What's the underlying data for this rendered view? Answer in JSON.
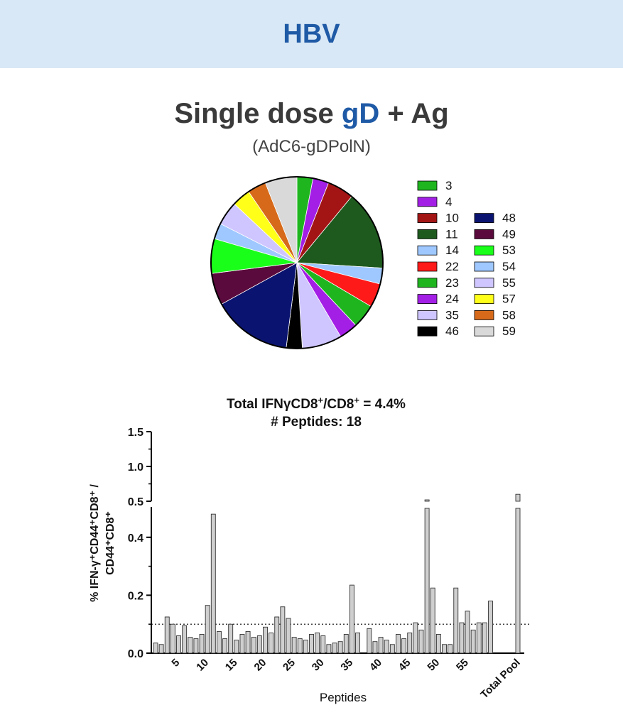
{
  "header": {
    "title": "HBV"
  },
  "figure": {
    "title_part1": "Single dose ",
    "title_accent": "gD",
    "title_part2": " + Ag",
    "subtitle": "(AdC6-gDPolN)",
    "accent_color": "#1f5aa6"
  },
  "chart_data": [
    {
      "type": "pie",
      "slices": [
        {
          "label": "3",
          "value": 3.0,
          "color": "#1fb51f"
        },
        {
          "label": "4",
          "value": 3.0,
          "color": "#a31fe6"
        },
        {
          "label": "10",
          "value": 5.0,
          "color": "#a31515"
        },
        {
          "label": "11",
          "value": 15.0,
          "color": "#1e5a1e"
        },
        {
          "label": "14",
          "value": 3.0,
          "color": "#9ec8ff"
        },
        {
          "label": "22",
          "value": 4.5,
          "color": "#ff1a1a"
        },
        {
          "label": "23",
          "value": 4.5,
          "color": "#1fb51f"
        },
        {
          "label": "24",
          "value": 3.5,
          "color": "#a31fe6"
        },
        {
          "label": "35",
          "value": 7.5,
          "color": "#cfc5ff"
        },
        {
          "label": "46",
          "value": 3.0,
          "color": "#000000"
        },
        {
          "label": "48",
          "value": 15.0,
          "color": "#0a1470"
        },
        {
          "label": "49",
          "value": 6.0,
          "color": "#5a0a3c"
        },
        {
          "label": "53",
          "value": 6.5,
          "color": "#1aff1a"
        },
        {
          "label": "54",
          "value": 3.0,
          "color": "#9ec8ff"
        },
        {
          "label": "55",
          "value": 4.5,
          "color": "#cfc5ff"
        },
        {
          "label": "57",
          "value": 3.5,
          "color": "#ffff1a"
        },
        {
          "label": "58",
          "value": 3.5,
          "color": "#d66a1a"
        },
        {
          "label": "59",
          "value": 6.0,
          "color": "#d9d9d9"
        }
      ]
    },
    {
      "type": "bar",
      "title_line1": "Total IFNγCD8",
      "title_sup1": "+",
      "title_mid": "/CD8",
      "title_sup2": "+",
      "title_end": " = 4.4%",
      "title_line2": "# Peptides: 18",
      "xlabel": "Peptides",
      "ylabel_line1": "% IFN-γ⁺CD44⁺CD8⁺ /",
      "ylabel_line2": "CD44⁺CD8⁺",
      "y_axis_break": true,
      "ylim_lower": [
        0.0,
        0.5
      ],
      "ylim_upper": [
        0.5,
        1.5
      ],
      "y_ticks_lower": [
        "0.0",
        "0.2",
        "0.4"
      ],
      "y_ticks_upper": [
        "0.5",
        "1.0",
        "1.5"
      ],
      "x_ticks": [
        "5",
        "10",
        "15",
        "20",
        "25",
        "30",
        "35",
        "40",
        "45",
        "50",
        "55",
        "Total Pool"
      ],
      "threshold": 0.1,
      "values": [
        0.035,
        0.03,
        0.125,
        0.1,
        0.06,
        0.095,
        0.055,
        0.05,
        0.065,
        0.165,
        0.48,
        0.075,
        0.05,
        0.1,
        0.045,
        0.065,
        0.075,
        0.055,
        0.06,
        0.09,
        0.07,
        0.125,
        0.16,
        0.12,
        0.055,
        0.05,
        0.045,
        0.065,
        0.07,
        0.06,
        0.03,
        0.035,
        0.04,
        0.065,
        0.235,
        0.07,
        0.0,
        0.085,
        0.04,
        0.055,
        0.045,
        0.03,
        0.065,
        0.05,
        0.07,
        0.105,
        0.08,
        0.52,
        0.225,
        0.065,
        0.03,
        0.03,
        0.225,
        0.105,
        0.145,
        0.08,
        0.105,
        0.105,
        0.18
      ],
      "total_pool": 0.6
    }
  ]
}
